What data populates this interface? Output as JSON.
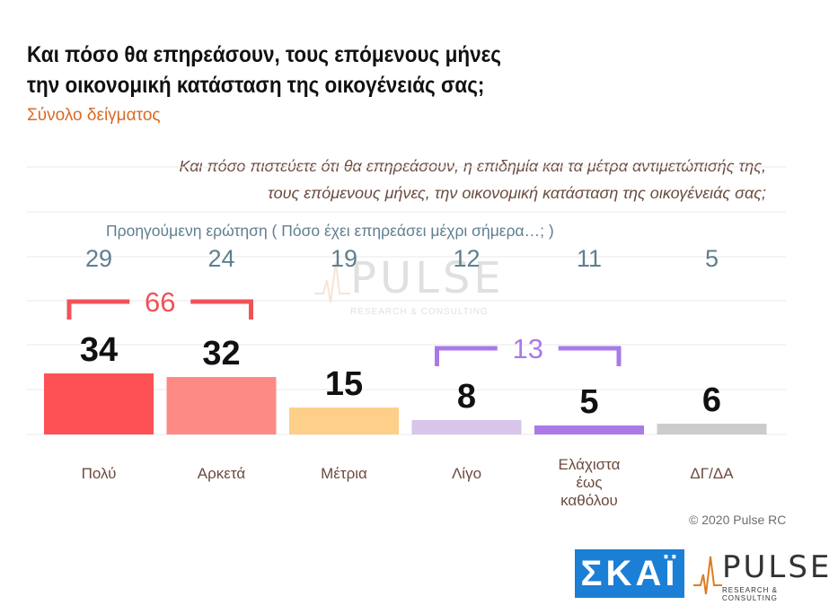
{
  "header": {
    "title_line1": "Και πόσο θα επηρεάσουν, τους επόμενους μήνες",
    "title_line2": "την οικονομική κατάσταση της οικογένειάς σας;",
    "subtitle": "Σύνολο δείγματος"
  },
  "question": {
    "line1": "Και πόσο πιστεύετε ότι θα επηρεάσουν, η επιδημία και τα μέτρα αντιμετώπισής της,",
    "line2": "τους επόμενους μήνες, την οικονομική κατάσταση της οικογένειάς σας;"
  },
  "previous": {
    "label": "Προηγούμενη ερώτηση   ( Πόσο έχει επηρεάσει μέχρι σήμερα…; )"
  },
  "chart_data": {
    "type": "bar",
    "categories": [
      [
        "Πολύ"
      ],
      [
        "Αρκετά"
      ],
      [
        "Μέτρια"
      ],
      [
        "Λίγο"
      ],
      [
        "Ελάχιστα",
        "έως",
        "καθόλου"
      ],
      [
        "ΔΓ/ΔΑ"
      ]
    ],
    "values": [
      34,
      32,
      15,
      8,
      5,
      6
    ],
    "previous_values": [
      29,
      24,
      19,
      12,
      11,
      5
    ],
    "colors": [
      "#fd5156",
      "#fe8a86",
      "#fecf89",
      "#d7c5ea",
      "#a97ae8",
      "#cccccc"
    ],
    "groups": [
      {
        "label": "66",
        "from": 0,
        "to": 1,
        "color": "#f05258"
      },
      {
        "label": "13",
        "from": 3,
        "to": 4,
        "color": "#a87ae8"
      }
    ],
    "ylim": [
      0,
      40
    ],
    "grid": true
  },
  "watermark": {
    "word": "PULSE",
    "sub": "RESEARCH & CONSULTING"
  },
  "footer": {
    "copyright": "© 2020 Pulse RC",
    "logo_skai": "ΣΚΑΪ",
    "logo_pulse": "PULSE",
    "logo_pulse_sub": "RESEARCH & CONSULTING"
  }
}
